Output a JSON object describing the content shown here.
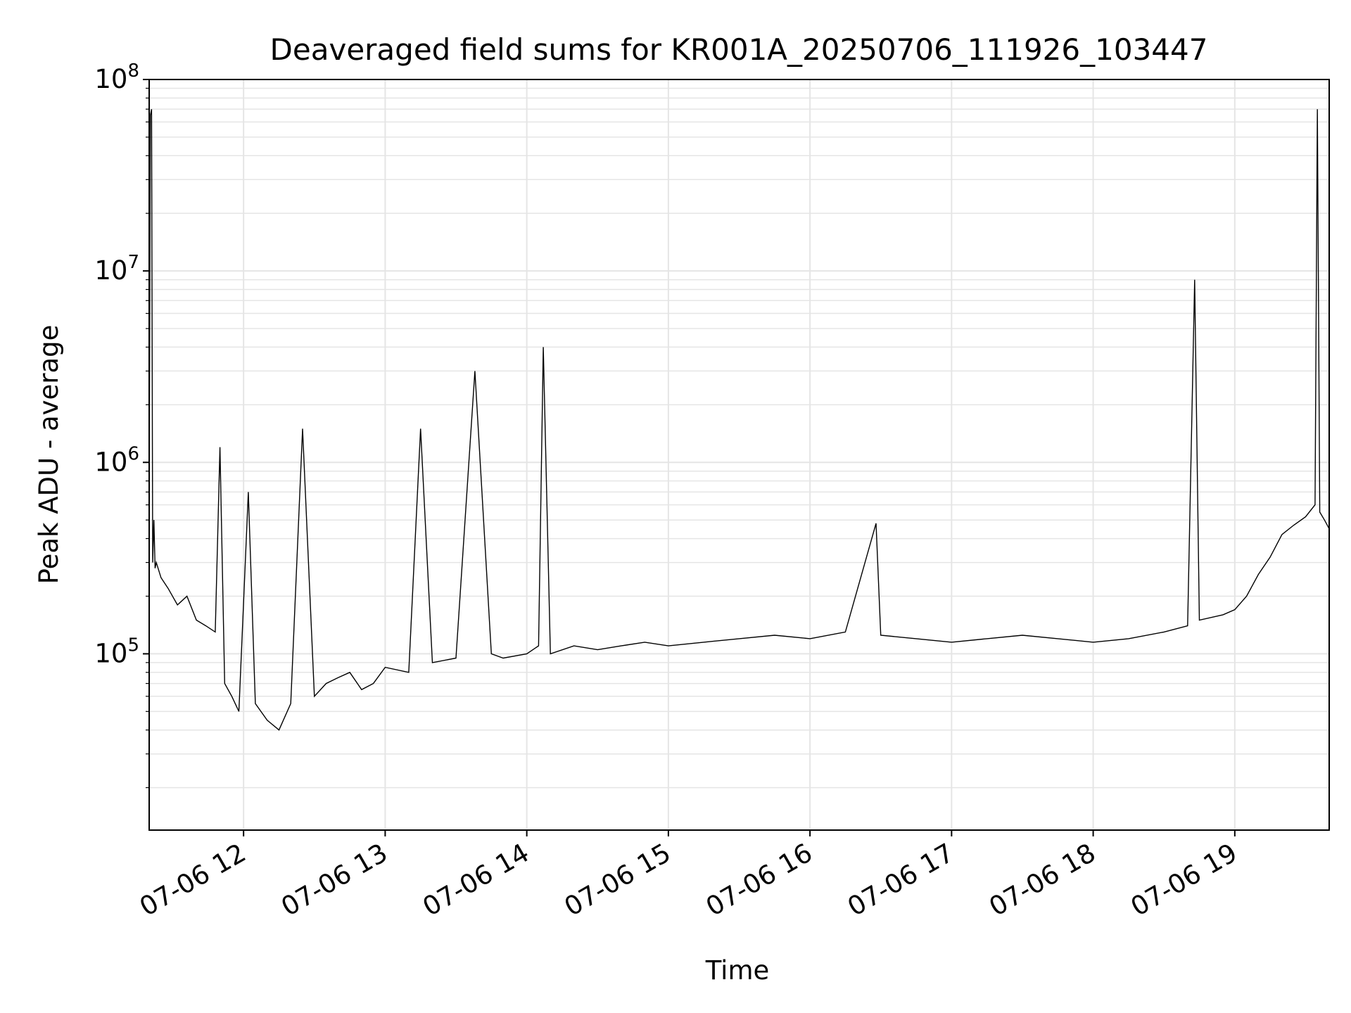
{
  "chart_data": {
    "type": "line",
    "title": "Deaveraged field sums for KR001A_20250706_111926_103447",
    "xlabel": "Time",
    "ylabel": "Peak ADU - average",
    "yscale": "log",
    "ylim": [
      12000,
      100000000
    ],
    "xlim": [
      "2025-07-06 11:20",
      "2025-07-06 19:40"
    ],
    "x_tick_labels": [
      "07-06 12",
      "07-06 13",
      "07-06 14",
      "07-06 15",
      "07-06 16",
      "07-06 17",
      "07-06 18",
      "07-06 19"
    ],
    "x_tick_values": [
      "2025-07-06 12:00",
      "2025-07-06 13:00",
      "2025-07-06 14:00",
      "2025-07-06 15:00",
      "2025-07-06 16:00",
      "2025-07-06 17:00",
      "2025-07-06 18:00",
      "2025-07-06 19:00"
    ],
    "y_tick_labels": [
      {
        "base": "10",
        "exp": "5",
        "value": 100000
      },
      {
        "base": "10",
        "exp": "6",
        "value": 1000000
      },
      {
        "base": "10",
        "exp": "7",
        "value": 10000000
      },
      {
        "base": "10",
        "exp": "8",
        "value": 100000000
      }
    ],
    "grid": true,
    "line_color": "#000000",
    "grid_color": "#e5e5e5",
    "series": [
      {
        "x": [
          "2025-07-06 11:20",
          "2025-07-06 11:20:30",
          "2025-07-06 11:21",
          "2025-07-06 11:21:30",
          "2025-07-06 11:22",
          "2025-07-06 11:22:30",
          "2025-07-06 11:23",
          "2025-07-06 11:25",
          "2025-07-06 11:28",
          "2025-07-06 11:32",
          "2025-07-06 11:36",
          "2025-07-06 11:40",
          "2025-07-06 11:44",
          "2025-07-06 11:48",
          "2025-07-06 11:50",
          "2025-07-06 11:52",
          "2025-07-06 11:55",
          "2025-07-06 11:58",
          "2025-07-06 12:02",
          "2025-07-06 12:05",
          "2025-07-06 12:10",
          "2025-07-06 12:15",
          "2025-07-06 12:20",
          "2025-07-06 12:25",
          "2025-07-06 12:30",
          "2025-07-06 12:35",
          "2025-07-06 12:40",
          "2025-07-06 12:45",
          "2025-07-06 12:50",
          "2025-07-06 12:55",
          "2025-07-06 13:00",
          "2025-07-06 13:10",
          "2025-07-06 13:15",
          "2025-07-06 13:20",
          "2025-07-06 13:30",
          "2025-07-06 13:38",
          "2025-07-06 13:45",
          "2025-07-06 13:50",
          "2025-07-06 14:00",
          "2025-07-06 14:05",
          "2025-07-06 14:07",
          "2025-07-06 14:10",
          "2025-07-06 14:20",
          "2025-07-06 14:30",
          "2025-07-06 14:40",
          "2025-07-06 14:50",
          "2025-07-06 15:00",
          "2025-07-06 15:15",
          "2025-07-06 15:30",
          "2025-07-06 15:45",
          "2025-07-06 16:00",
          "2025-07-06 16:15",
          "2025-07-06 16:28",
          "2025-07-06 16:30",
          "2025-07-06 16:45",
          "2025-07-06 17:00",
          "2025-07-06 17:15",
          "2025-07-06 17:30",
          "2025-07-06 17:45",
          "2025-07-06 18:00",
          "2025-07-06 18:15",
          "2025-07-06 18:30",
          "2025-07-06 18:40",
          "2025-07-06 18:43",
          "2025-07-06 18:45",
          "2025-07-06 18:55",
          "2025-07-06 19:00",
          "2025-07-06 19:05",
          "2025-07-06 19:10",
          "2025-07-06 19:15",
          "2025-07-06 19:20",
          "2025-07-06 19:25",
          "2025-07-06 19:30",
          "2025-07-06 19:34",
          "2025-07-06 19:35",
          "2025-07-06 19:36",
          "2025-07-06 19:38",
          "2025-07-06 19:40"
        ],
        "y": [
          600000,
          65000000,
          70000000,
          300000,
          500000,
          280000,
          300000,
          250000,
          220000,
          180000,
          200000,
          150000,
          140000,
          130000,
          1200000,
          70000,
          60000,
          50000,
          700000,
          55000,
          45000,
          40000,
          55000,
          1500000,
          60000,
          70000,
          75000,
          80000,
          65000,
          70000,
          85000,
          80000,
          1500000,
          90000,
          95000,
          3000000,
          100000,
          95000,
          100000,
          110000,
          4000000,
          100000,
          110000,
          105000,
          110000,
          115000,
          110000,
          115000,
          120000,
          125000,
          120000,
          130000,
          480000,
          125000,
          120000,
          115000,
          120000,
          125000,
          120000,
          115000,
          120000,
          130000,
          140000,
          9000000,
          150000,
          160000,
          170000,
          200000,
          260000,
          320000,
          420000,
          470000,
          520000,
          600000,
          70000000,
          550000,
          500000,
          450000
        ]
      }
    ]
  }
}
